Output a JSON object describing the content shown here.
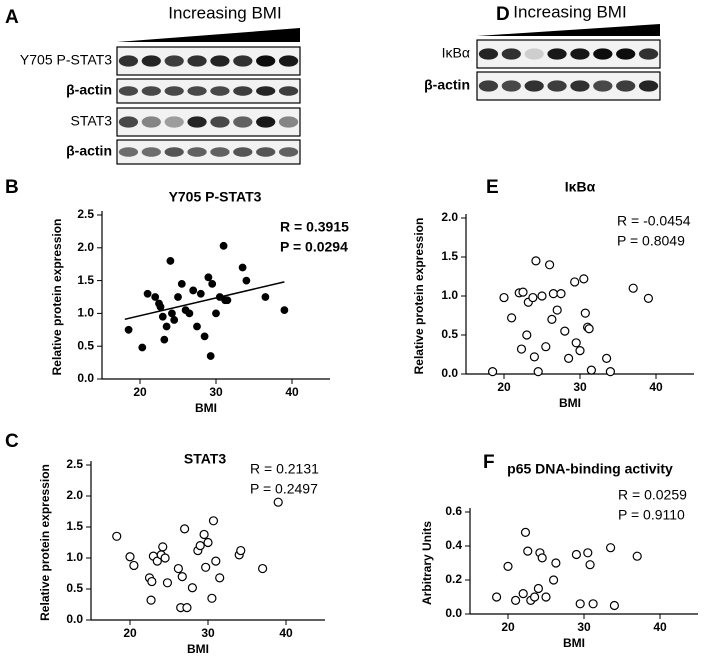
{
  "blots": [
    {
      "panel": "A",
      "heading": "Increasing BMI",
      "rows": [
        "Y705 P-STAT3",
        "β-actin",
        "STAT3",
        "β-actin"
      ]
    },
    {
      "panel": "D",
      "heading": "Increasing BMI",
      "rows": [
        "IκBα",
        "β-actin"
      ]
    }
  ],
  "chart_data": [
    {
      "type": "scatter",
      "panel": "B",
      "title": "Y705 P-STAT3",
      "x_label": "BMI",
      "y_label": "Relative protein expression",
      "annotations": [
        "R = 0.3915",
        "P = 0.0294"
      ],
      "marker": "filled",
      "color": "#000000",
      "x": [
        18.5,
        20.3,
        21,
        22,
        22.5,
        22.7,
        23,
        23.2,
        23.5,
        24,
        24.2,
        24.5,
        25,
        25.5,
        26,
        26.5,
        27,
        27.5,
        28,
        28.5,
        29,
        29.3,
        29.5,
        30,
        30.5,
        31,
        31.2,
        31.5,
        33.5,
        34,
        36.5,
        39
      ],
      "values": [
        0.75,
        0.48,
        1.3,
        1.25,
        1.15,
        1.1,
        0.95,
        0.6,
        0.8,
        1.8,
        1.0,
        0.9,
        1.25,
        1.45,
        1.05,
        1.0,
        1.35,
        0.8,
        1.3,
        0.65,
        1.55,
        0.35,
        1.45,
        1.0,
        1.25,
        2.03,
        1.2,
        1.2,
        1.7,
        1.5,
        1.25,
        1.05
      ],
      "trendline": {
        "x": [
          18,
          39
        ],
        "y": [
          0.91,
          1.48
        ]
      },
      "xlim": [
        15,
        45
      ],
      "xticks": [
        20,
        30,
        40
      ],
      "ylim": [
        0,
        2.5
      ],
      "yticks": [
        {
          "value": 0,
          "label": "0.0"
        },
        0.5,
        {
          "value": 1,
          "label": "1.0"
        },
        1.5,
        {
          "value": 2,
          "label": "2.0"
        },
        2.5
      ]
    },
    {
      "type": "scatter",
      "panel": "E",
      "title": "IκBα",
      "x_label": "BMI",
      "y_label": "Relative protein expression",
      "annotations": [
        "R = -0.0454",
        "P = 0.8049"
      ],
      "marker": "open",
      "color": "#000000",
      "x": [
        18.5,
        20,
        21,
        22,
        22.3,
        22.5,
        23,
        23.2,
        23.8,
        24,
        24.2,
        24.5,
        25,
        25.5,
        26,
        26.3,
        26.5,
        27,
        27.5,
        28,
        28.5,
        29.3,
        29.5,
        30,
        30.5,
        30.7,
        31,
        31.2,
        31.5,
        33.5,
        34,
        37,
        39
      ],
      "values": [
        0.03,
        0.98,
        0.72,
        1.04,
        0.32,
        1.05,
        0.5,
        0.92,
        0.98,
        0.22,
        1.45,
        0.03,
        1.0,
        0.35,
        1.4,
        0.7,
        1.03,
        0.82,
        1.03,
        0.55,
        0.2,
        1.18,
        0.4,
        0.3,
        1.22,
        0.78,
        0.6,
        0.58,
        0.05,
        0.2,
        0.03,
        1.1,
        0.97
      ],
      "xlim": [
        15,
        45
      ],
      "xticks": [
        20,
        30,
        40
      ],
      "ylim": [
        0,
        2
      ],
      "yticks": [
        {
          "value": 0,
          "label": "0.0"
        },
        0.5,
        {
          "value": 1,
          "label": "1.0"
        },
        1.5,
        {
          "value": 2,
          "label": "2.0"
        }
      ]
    },
    {
      "type": "scatter",
      "panel": "C",
      "title": "STAT3",
      "x_label": "BMI",
      "y_label": "Relative protein expression",
      "annotations": [
        "R = 0.2131",
        "P = 0.2497"
      ],
      "marker": "open",
      "color": "#000000",
      "x": [
        18.3,
        20,
        20.5,
        22.5,
        22.7,
        22.8,
        23,
        23.5,
        24,
        24.2,
        24.5,
        24.8,
        26.2,
        26.5,
        26.7,
        27,
        27.3,
        28,
        28.7,
        29,
        29.5,
        29.7,
        30,
        30.5,
        30.7,
        31,
        31.5,
        34,
        34.2,
        37,
        39
      ],
      "values": [
        1.35,
        1.02,
        0.88,
        0.68,
        0.32,
        0.62,
        1.03,
        0.95,
        1.05,
        1.18,
        1.0,
        0.6,
        0.83,
        0.2,
        0.7,
        1.47,
        0.2,
        0.52,
        1.12,
        1.2,
        1.38,
        0.85,
        1.25,
        0.35,
        1.6,
        0.95,
        0.68,
        1.05,
        1.12,
        0.83,
        1.9
      ],
      "xlim": [
        15,
        45
      ],
      "xticks": [
        20,
        30,
        40
      ],
      "ylim": [
        0,
        2.5
      ],
      "yticks": [
        {
          "value": 0,
          "label": "0.0"
        },
        0.5,
        {
          "value": 1,
          "label": "1.0"
        },
        1.5,
        {
          "value": 2,
          "label": "2.0"
        },
        2.5
      ]
    },
    {
      "type": "scatter",
      "panel": "F",
      "title": "p65 DNA-binding activity",
      "x_label": "BMI",
      "y_label": "Arbitrary Units",
      "annotations": [
        "R = 0.0259",
        "P = 0.9110"
      ],
      "marker": "open",
      "color": "#000000",
      "x": [
        18.5,
        20,
        21,
        22,
        22.3,
        22.6,
        23,
        23.5,
        24,
        24.2,
        24.5,
        25,
        26,
        26.3,
        29,
        29.5,
        30.5,
        30.8,
        31.2,
        33.5,
        34,
        37
      ],
      "values": [
        0.1,
        0.28,
        0.08,
        0.12,
        0.48,
        0.37,
        0.08,
        0.1,
        0.15,
        0.36,
        0.33,
        0.1,
        0.2,
        0.3,
        0.35,
        0.06,
        0.36,
        0.29,
        0.06,
        0.39,
        0.05,
        0.34
      ],
      "xlim": [
        15,
        45
      ],
      "xticks": [
        20,
        30,
        40
      ],
      "ylim": [
        0,
        0.6
      ],
      "yticks": [
        {
          "value": 0,
          "label": "0.0"
        },
        0.2,
        0.4,
        0.6
      ]
    }
  ]
}
